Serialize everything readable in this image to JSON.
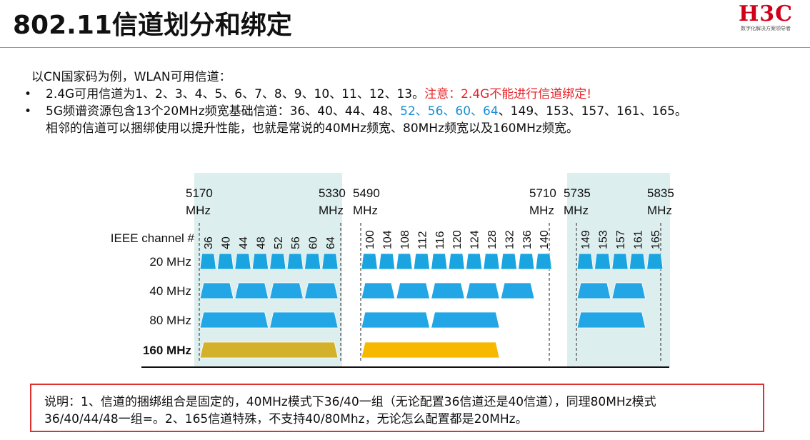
{
  "header": {
    "title": "802.11信道划分和绑定",
    "logo": {
      "mark": "H3C",
      "subtitle": "数字化解决方案领导者"
    }
  },
  "intro": "以CN国家码为例，WLAN可用信道：",
  "bullets": [
    {
      "symbol": "•",
      "text": "2.4G可用信道为1、2、3、4、5、6、7、8、9、10、11、12、13。",
      "warning": "注意：2.4G不能进行信道绑定!"
    },
    {
      "symbol": "•",
      "text_a": "5G频谱资源包含13个20MHz频宽基础信道：36、40、44、48、",
      "text_blue": "52、56、60、64",
      "text_b": "、149、153、157、161、165。",
      "line2": "相邻的信道可以捆绑使用以提升性能，也就是常说的40MHz频宽、80MHz频宽以及160MHz频宽。"
    }
  ],
  "chart_data": {
    "type": "diagram",
    "ieee_label": "IEEE channel #",
    "freq_labels": [
      {
        "freq": "5170",
        "unit": "MHz"
      },
      {
        "freq": "5330",
        "unit": "MHz"
      },
      {
        "freq": "5490",
        "unit": "MHz"
      },
      {
        "freq": "5710",
        "unit": "MHz"
      },
      {
        "freq": "5735",
        "unit": "MHz"
      },
      {
        "freq": "5835",
        "unit": "MHz"
      }
    ],
    "channel_groups": [
      [
        "36",
        "40",
        "44",
        "48",
        "52",
        "56",
        "60",
        "64"
      ],
      [
        "100",
        "104",
        "108",
        "112",
        "116",
        "120",
        "124",
        "128",
        "132",
        "136",
        "140"
      ],
      [
        "149",
        "153",
        "157",
        "161",
        "165"
      ]
    ],
    "rows": [
      {
        "label": "20 MHz",
        "bold": false,
        "group_blocks": [
          [
            1,
            1,
            1,
            1,
            1,
            1,
            1,
            1
          ],
          [
            1,
            1,
            1,
            1,
            1,
            1,
            1,
            1,
            1,
            1,
            1
          ],
          [
            1,
            1,
            1,
            1,
            1
          ]
        ]
      },
      {
        "label": "40 MHz",
        "bold": false,
        "group_blocks": [
          [
            2,
            2,
            2,
            2
          ],
          [
            2,
            2,
            2,
            2,
            2
          ],
          [
            2,
            2
          ]
        ]
      },
      {
        "label": "80 MHz",
        "bold": false,
        "group_blocks": [
          [
            4,
            4
          ],
          [
            4,
            4
          ],
          [
            4
          ]
        ]
      },
      {
        "label": "160 MHz",
        "bold": true,
        "group_blocks": [
          [
            8
          ],
          [
            8
          ],
          []
        ]
      }
    ],
    "colors": {
      "shade": "#ddeeee",
      "block20": "#1aa4e0",
      "block": "#22a6e6",
      "block160_a": "#d4b12a",
      "block160_b": "#f7b800"
    }
  },
  "note": {
    "line1": "说明：1、信道的捆绑组合是固定的，40MHz模式下36/40一组（无论配置36信道还是40信道），同理80MHz模式",
    "line2": "36/40/44/48一组=。2、165信道特殊，不支持40/80Mhz，无论怎么配置都是20MHz。"
  }
}
